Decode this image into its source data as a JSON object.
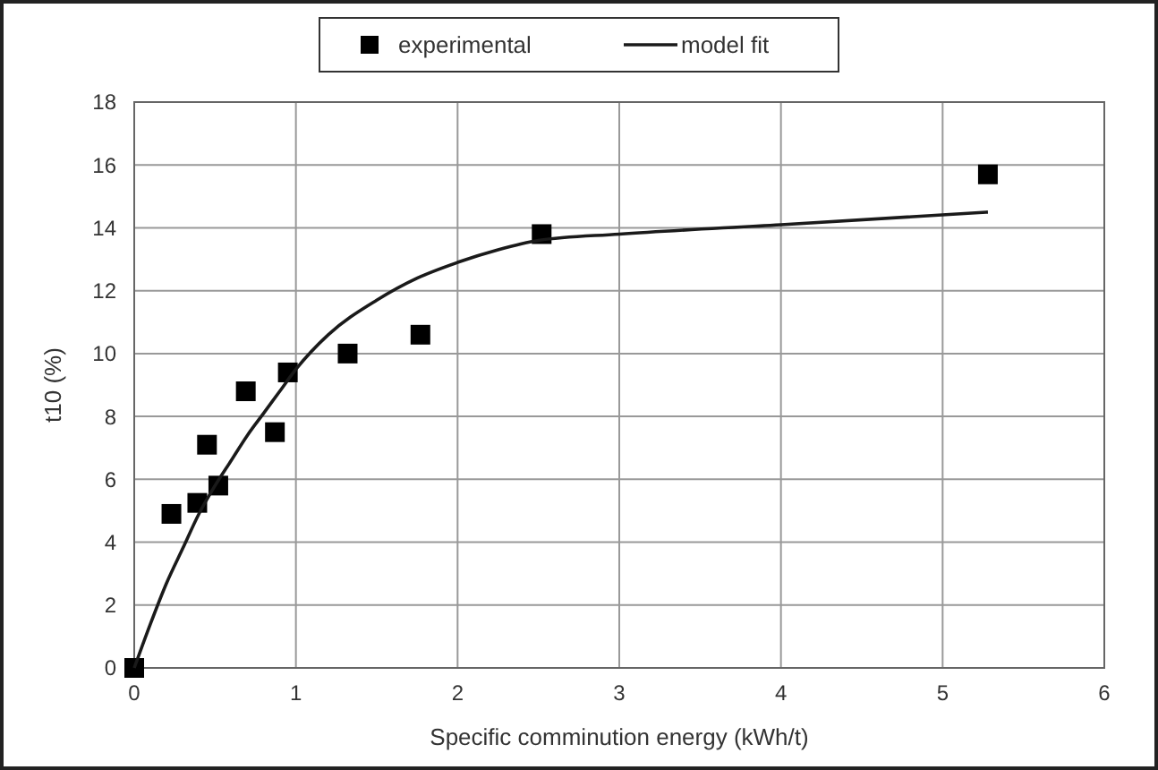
{
  "chart_data": {
    "type": "scatter",
    "xlabel": "Specific comminution energy (kWh/t)",
    "ylabel": "t10 (%)",
    "xlim": [
      0,
      6
    ],
    "ylim": [
      0,
      18
    ],
    "xticks": [
      0,
      1,
      2,
      3,
      4,
      5,
      6
    ],
    "yticks": [
      0,
      2,
      4,
      6,
      8,
      10,
      12,
      14,
      16,
      18
    ],
    "grid": true,
    "legend": "top",
    "series": [
      {
        "name": "experimental",
        "marker": "square",
        "color": "#000000",
        "x": [
          0,
          0.23,
          0.39,
          0.45,
          0.52,
          0.69,
          0.87,
          0.95,
          1.32,
          1.77,
          2.52,
          5.28
        ],
        "values": [
          0,
          4.9,
          5.25,
          7.1,
          5.8,
          8.8,
          7.5,
          9.4,
          10.0,
          10.6,
          13.8,
          15.7
        ]
      },
      {
        "name": "model fit",
        "type": "line",
        "marker": "none",
        "line_style": "solid",
        "color": "#1a1a1a",
        "x": [
          0,
          0.1,
          0.2,
          0.3,
          0.4,
          0.5,
          0.6,
          0.7,
          0.8,
          0.9,
          1.0,
          1.2,
          1.5,
          1.75,
          2,
          2.25,
          2.5,
          3,
          4,
          5.28
        ],
        "values": [
          0,
          1.4,
          2.7,
          3.8,
          4.9,
          5.8,
          6.6,
          7.4,
          8.1,
          8.8,
          9.5,
          10.6,
          11.7,
          12.4,
          12.9,
          13.3,
          13.6,
          13.8,
          14.1,
          14.5
        ]
      }
    ]
  }
}
